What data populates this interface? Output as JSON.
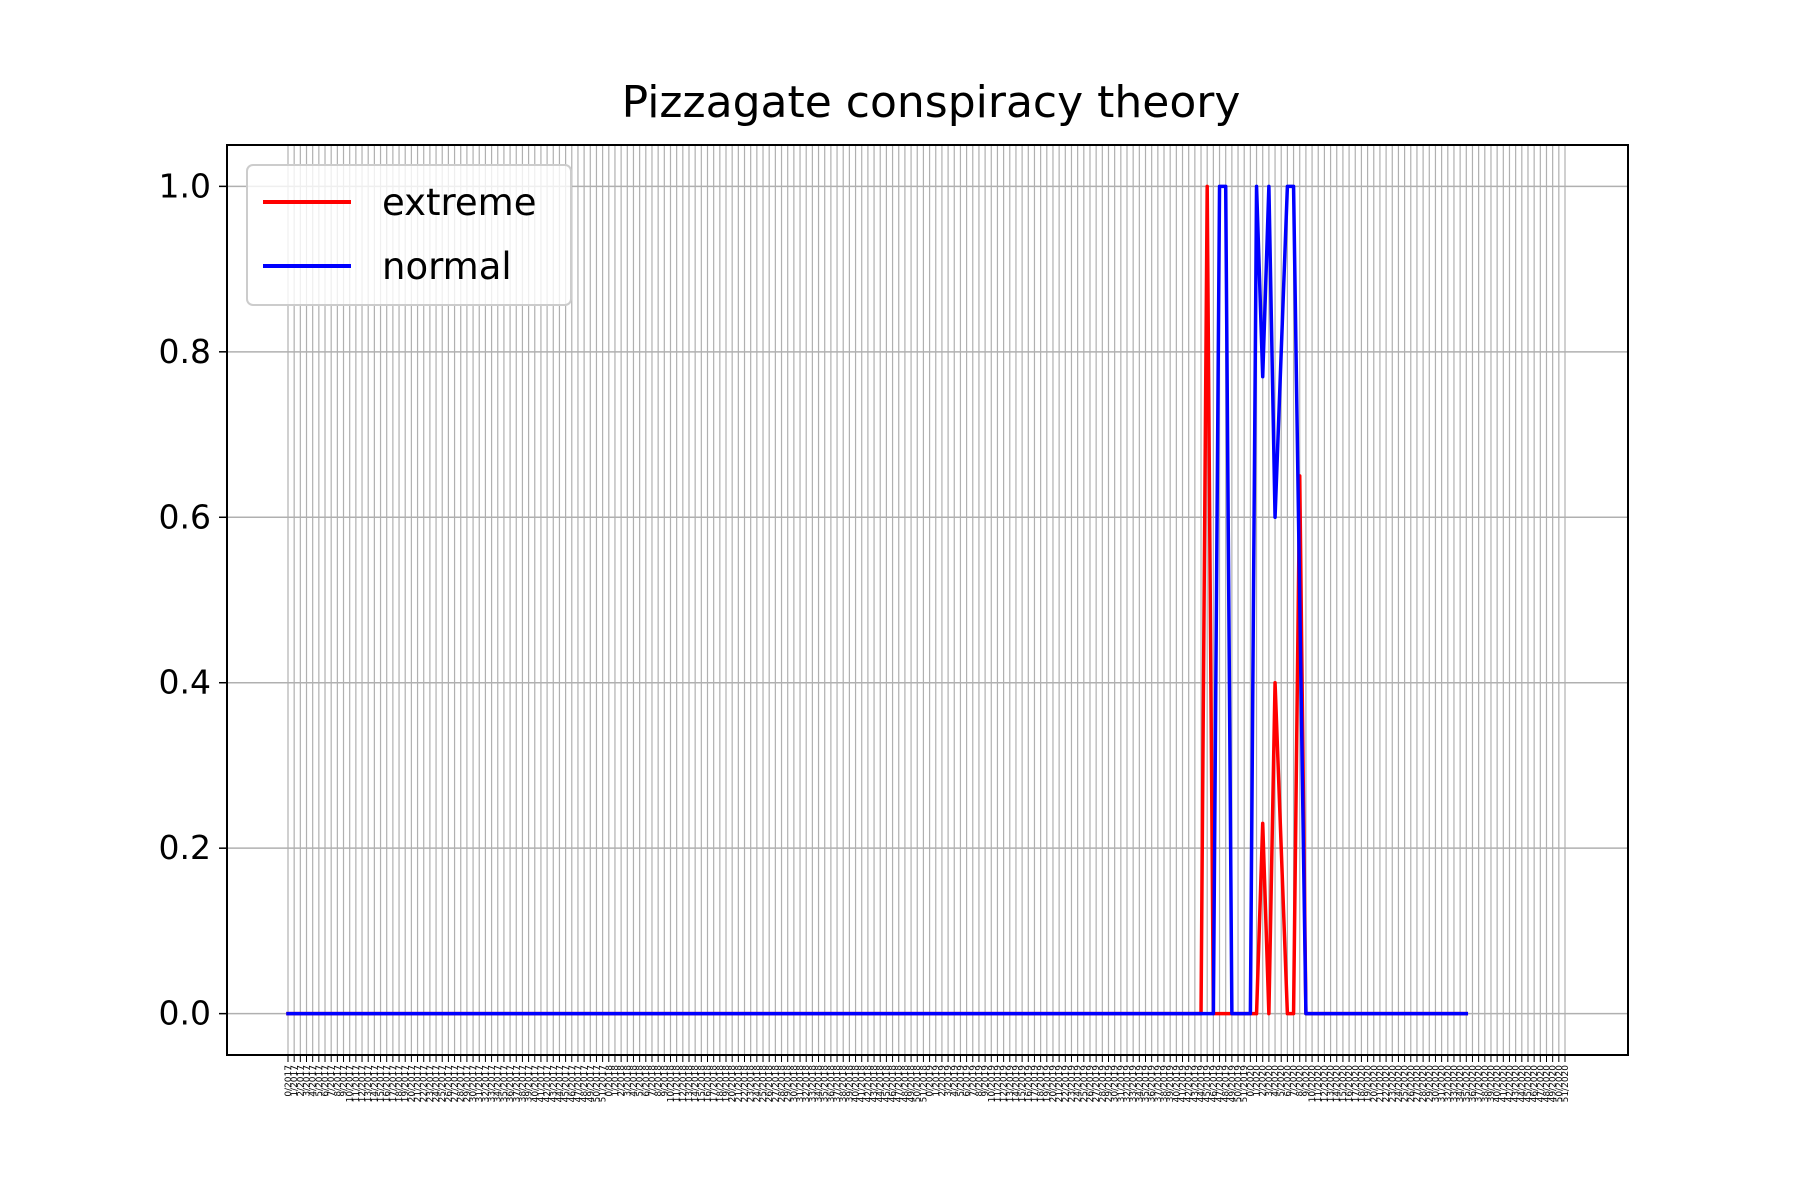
{
  "chart_data": {
    "type": "line",
    "title": "Pizzagate conspiracy theory",
    "xlabel": "",
    "ylabel": "",
    "ylim": [
      -0.05,
      1.05
    ],
    "yticks": [
      0.0,
      0.2,
      0.4,
      0.6,
      0.8,
      1.0
    ],
    "ytick_labels": [
      "0.0",
      "0.2",
      "0.4",
      "0.6",
      "0.8",
      "1.0"
    ],
    "grid": true,
    "legend_position": "upper-left",
    "x_tick_label_pattern": "{week}/{year}",
    "x_years": [
      2017,
      2018,
      2019,
      2020
    ],
    "x_weeks_per_year": 52,
    "series": [
      {
        "name": "extreme",
        "color": "#ff0000",
        "points": [
          [
            0,
            0
          ],
          [
            148,
            0
          ],
          [
            149,
            1.0
          ],
          [
            150,
            0
          ],
          [
            153,
            0
          ],
          [
            157,
            0
          ],
          [
            158,
            0.23
          ],
          [
            159,
            0
          ],
          [
            160,
            0.4
          ],
          [
            161,
            0.2
          ],
          [
            162,
            0
          ],
          [
            163,
            0
          ],
          [
            164,
            0.65
          ],
          [
            165,
            0
          ],
          [
            191,
            0
          ]
        ]
      },
      {
        "name": "normal",
        "color": "#0000ff",
        "points": [
          [
            0,
            0
          ],
          [
            150,
            0
          ],
          [
            151,
            1.0
          ],
          [
            152,
            1.0
          ],
          [
            153,
            0
          ],
          [
            156,
            0
          ],
          [
            157,
            1.0
          ],
          [
            158,
            0.77
          ],
          [
            159,
            1.0
          ],
          [
            160,
            0.6
          ],
          [
            161,
            0.8
          ],
          [
            162,
            1.0
          ],
          [
            163,
            1.0
          ],
          [
            164,
            0.5
          ],
          [
            165,
            0
          ],
          [
            191,
            0
          ]
        ]
      }
    ]
  }
}
